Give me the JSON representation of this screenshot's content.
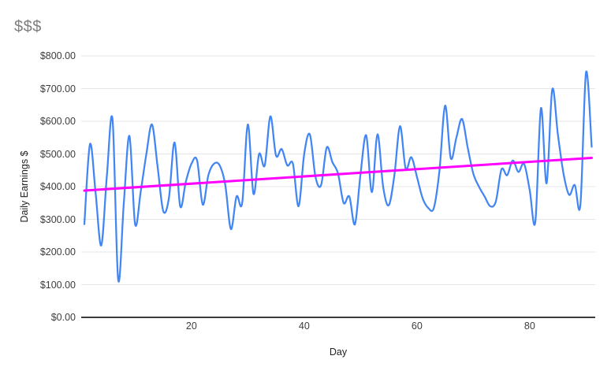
{
  "page": {
    "background": "#ffffff"
  },
  "chart_data": {
    "type": "line",
    "title": "$$$",
    "xlabel": "Day",
    "ylabel": "Daily Earnings $",
    "xlim": [
      1,
      91
    ],
    "ylim": [
      0,
      800
    ],
    "grid": "horizontal-only",
    "legend": "none",
    "y_ticks": [
      {
        "value": 0,
        "label": "$0.00"
      },
      {
        "value": 100,
        "label": "$100.00"
      },
      {
        "value": 200,
        "label": "$200.00"
      },
      {
        "value": 300,
        "label": "$300.00"
      },
      {
        "value": 400,
        "label": "$400.00"
      },
      {
        "value": 500,
        "label": "$500.00"
      },
      {
        "value": 600,
        "label": "$600.00"
      },
      {
        "value": 700,
        "label": "$700.00"
      },
      {
        "value": 800,
        "label": "$800.00"
      }
    ],
    "x_ticks": [
      {
        "value": 20,
        "label": "20"
      },
      {
        "value": 40,
        "label": "40"
      },
      {
        "value": 60,
        "label": "60"
      },
      {
        "value": 80,
        "label": "80"
      }
    ],
    "x": [
      1,
      2,
      3,
      4,
      5,
      6,
      7,
      8,
      9,
      10,
      11,
      12,
      13,
      14,
      15,
      16,
      17,
      18,
      19,
      20,
      21,
      22,
      23,
      24,
      25,
      26,
      27,
      28,
      29,
      30,
      31,
      32,
      33,
      34,
      35,
      36,
      37,
      38,
      39,
      40,
      41,
      42,
      43,
      44,
      45,
      46,
      47,
      48,
      49,
      50,
      51,
      52,
      53,
      54,
      55,
      56,
      57,
      58,
      59,
      60,
      61,
      62,
      63,
      64,
      65,
      66,
      67,
      68,
      69,
      70,
      71,
      72,
      73,
      74,
      75,
      76,
      77,
      78,
      79,
      80,
      81,
      82,
      83,
      84,
      85,
      86,
      87,
      88,
      89,
      90,
      91
    ],
    "series": [
      {
        "name": "Daily Earnings",
        "color": "#4285f4",
        "line_width": 2.25,
        "smooth": true,
        "values": [
          285,
          530,
          380,
          220,
          435,
          605,
          115,
          350,
          555,
          285,
          385,
          500,
          590,
          460,
          325,
          365,
          535,
          340,
          415,
          470,
          480,
          345,
          435,
          470,
          465,
          405,
          270,
          370,
          350,
          590,
          378,
          500,
          465,
          615,
          495,
          515,
          465,
          470,
          340,
          500,
          560,
          430,
          405,
          520,
          475,
          440,
          350,
          370,
          285,
          440,
          557,
          383,
          560,
          400,
          343,
          435,
          585,
          455,
          490,
          430,
          365,
          335,
          335,
          450,
          648,
          487,
          550,
          607,
          520,
          440,
          400,
          370,
          340,
          355,
          453,
          435,
          480,
          445,
          470,
          390,
          292,
          640,
          410,
          697,
          560,
          440,
          375,
          405,
          345,
          750,
          522
        ]
      },
      {
        "name": "Trendline",
        "color": "#ff00ff",
        "line_width": 3,
        "smooth": false,
        "points": [
          {
            "day": 1,
            "value": 388
          },
          {
            "day": 91,
            "value": 488
          }
        ]
      }
    ],
    "colors": {
      "gridline": "#e6e6e6",
      "axis_line": "#3c3c3c",
      "tick_label": "#3d3d3d",
      "axis_title": "#222222",
      "title": "#7e7e7e",
      "background": "#ffffff"
    }
  }
}
